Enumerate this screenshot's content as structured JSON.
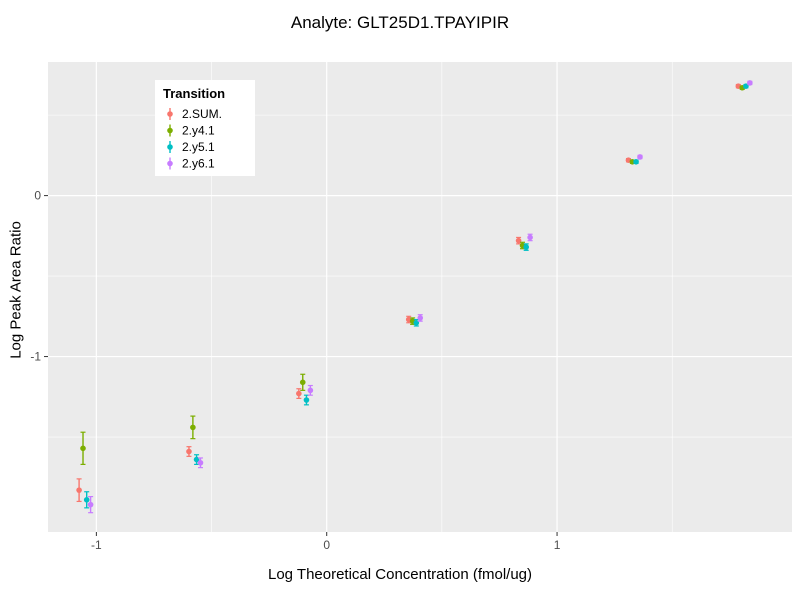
{
  "title": "Analyte: GLT25D1.TPAYIPIR",
  "chart_data": {
    "type": "scatter",
    "title": "Analyte: GLT25D1.TPAYIPIR",
    "xlabel": "Log Theoretical Concentration (fmol/ug)",
    "ylabel": "Log Peak Area Ratio",
    "xlim": [
      -1.21,
      2.02
    ],
    "ylim": [
      -2.09,
      0.83
    ],
    "x_major_ticks": [
      -1,
      0,
      1
    ],
    "x_minor_ticks": [
      -0.5,
      0.5,
      1.5
    ],
    "y_major_ticks": [
      0,
      -1
    ],
    "y_minor_ticks": [
      0.5,
      -0.5,
      -1.5
    ],
    "grid": true,
    "legend": {
      "title": "Transition",
      "position": "top-left-inside",
      "entries": [
        "2.SUM.",
        "2.y4.1",
        "2.y5.1",
        "2.y6.1"
      ]
    },
    "colors": {
      "panel_bg": "#EBEBEB",
      "grid": "#FFFFFF",
      "tick_mark": "#333333",
      "tick_label": "#4D4D4D",
      "legend_bg": "#FFFFFF"
    },
    "series": [
      {
        "name": "2.SUM.",
        "color": "#F8766D",
        "points": [
          {
            "x": -1.075,
            "y": -1.83,
            "err": 0.07
          },
          {
            "x": -0.598,
            "y": -1.59,
            "err": 0.03
          },
          {
            "x": -0.121,
            "y": -1.23,
            "err": 0.03
          },
          {
            "x": 0.356,
            "y": -0.77,
            "err": 0.02
          },
          {
            "x": 0.833,
            "y": -0.28,
            "err": 0.02
          },
          {
            "x": 1.31,
            "y": 0.22,
            "err": 0.01
          },
          {
            "x": 1.787,
            "y": 0.68,
            "err": 0.01
          }
        ]
      },
      {
        "name": "2.y4.1",
        "color": "#7CAE00",
        "points": [
          {
            "x": -1.058,
            "y": -1.57,
            "err": 0.1
          },
          {
            "x": -0.581,
            "y": -1.44,
            "err": 0.07
          },
          {
            "x": -0.104,
            "y": -1.16,
            "err": 0.05
          },
          {
            "x": 0.373,
            "y": -0.78,
            "err": 0.02
          },
          {
            "x": 0.85,
            "y": -0.31,
            "err": 0.02
          },
          {
            "x": 1.327,
            "y": 0.21,
            "err": 0.01
          },
          {
            "x": 1.804,
            "y": 0.67,
            "err": 0.01
          }
        ]
      },
      {
        "name": "2.y5.1",
        "color": "#00BFC4",
        "points": [
          {
            "x": -1.042,
            "y": -1.89,
            "err": 0.05
          },
          {
            "x": -0.565,
            "y": -1.64,
            "err": 0.03
          },
          {
            "x": -0.088,
            "y": -1.27,
            "err": 0.03
          },
          {
            "x": 0.389,
            "y": -0.79,
            "err": 0.02
          },
          {
            "x": 0.866,
            "y": -0.32,
            "err": 0.02
          },
          {
            "x": 1.343,
            "y": 0.21,
            "err": 0.01
          },
          {
            "x": 1.82,
            "y": 0.68,
            "err": 0.01
          }
        ]
      },
      {
        "name": "2.y6.1",
        "color": "#C77CFF",
        "points": [
          {
            "x": -1.025,
            "y": -1.92,
            "err": 0.05
          },
          {
            "x": -0.548,
            "y": -1.66,
            "err": 0.03
          },
          {
            "x": -0.071,
            "y": -1.21,
            "err": 0.03
          },
          {
            "x": 0.406,
            "y": -0.76,
            "err": 0.02
          },
          {
            "x": 0.883,
            "y": -0.26,
            "err": 0.02
          },
          {
            "x": 1.36,
            "y": 0.24,
            "err": 0.01
          },
          {
            "x": 1.837,
            "y": 0.7,
            "err": 0.01
          }
        ]
      }
    ]
  }
}
